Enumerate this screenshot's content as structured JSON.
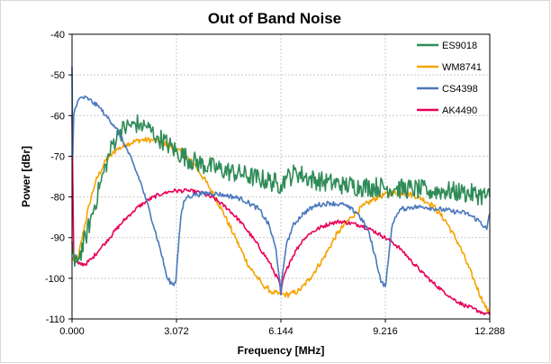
{
  "chart_data": {
    "type": "line",
    "title": "Out of Band Noise",
    "xlabel": "Frequency [MHz]",
    "ylabel": "Power [dBr]",
    "xlim": [
      0,
      12.288
    ],
    "ylim": [
      -110,
      -40
    ],
    "x_ticks": [
      "0.000",
      "3.072",
      "6.144",
      "9.216",
      "12.288"
    ],
    "x_tick_values": [
      0,
      3.072,
      6.144,
      9.216,
      12.288
    ],
    "y_ticks": [
      "-40",
      "-50",
      "-60",
      "-70",
      "-80",
      "-90",
      "-100",
      "-110"
    ],
    "y_tick_values": [
      -40,
      -50,
      -60,
      -70,
      -80,
      -90,
      -100,
      -110
    ],
    "grid": true,
    "legend_position": "top-right",
    "series": [
      {
        "name": "ES9018",
        "color": "#2e8b57",
        "noise": 2.5,
        "x": [
          0.0,
          0.08,
          0.2,
          0.4,
          0.6,
          0.8,
          1.0,
          1.2,
          1.4,
          1.6,
          1.8,
          2.0,
          2.2,
          2.5,
          2.8,
          3.1,
          3.5,
          4.0,
          4.5,
          5.0,
          5.5,
          6.0,
          6.144,
          6.3,
          6.6,
          7.0,
          7.5,
          8.0,
          8.5,
          9.0,
          9.5,
          10.0,
          10.5,
          11.0,
          11.5,
          12.0,
          12.288
        ],
        "y": [
          -91,
          -97,
          -95,
          -90,
          -84,
          -78,
          -72,
          -67,
          -64,
          -63,
          -62,
          -62,
          -63,
          -65,
          -67,
          -69,
          -71,
          -72.5,
          -73.5,
          -74.5,
          -75.5,
          -76.5,
          -77,
          -75.5,
          -74,
          -75.5,
          -76.5,
          -77,
          -77.5,
          -77.5,
          -78,
          -78,
          -78.5,
          -78.5,
          -79,
          -79.5,
          -80
        ]
      },
      {
        "name": "WM8741",
        "color": "#f5a300",
        "noise": 0.7,
        "x": [
          0.0,
          0.1,
          0.2,
          0.35,
          0.5,
          0.7,
          1.0,
          1.3,
          1.6,
          2.0,
          2.4,
          2.8,
          3.2,
          3.6,
          4.0,
          4.4,
          4.8,
          5.2,
          5.6,
          5.9,
          6.144,
          6.4,
          6.7,
          7.0,
          7.4,
          7.8,
          8.2,
          8.6,
          9.0,
          9.4,
          9.8,
          10.2,
          10.6,
          11.0,
          11.4,
          11.8,
          12.1,
          12.288
        ],
        "y": [
          -95,
          -96,
          -94,
          -88,
          -82,
          -76,
          -71,
          -68.5,
          -67,
          -66,
          -66,
          -67,
          -69,
          -72,
          -77,
          -83,
          -90,
          -97,
          -101.5,
          -103.5,
          -104,
          -104,
          -103,
          -100,
          -95,
          -89,
          -85,
          -82,
          -80,
          -79,
          -79,
          -80,
          -82,
          -86,
          -92,
          -100,
          -106,
          -109
        ]
      },
      {
        "name": "CS4398",
        "color": "#4a78bc",
        "noise": 0.6,
        "x": [
          0.0,
          0.02,
          0.05,
          0.1,
          0.2,
          0.3,
          0.5,
          0.8,
          1.0,
          1.3,
          1.6,
          2.0,
          2.3,
          2.6,
          2.8,
          2.95,
          3.05,
          3.1,
          3.2,
          3.3,
          3.4,
          3.6,
          4.0,
          4.5,
          5.0,
          5.5,
          5.8,
          6.0,
          6.1,
          6.144,
          6.19,
          6.3,
          6.5,
          6.8,
          7.2,
          7.6,
          8.0,
          8.4,
          8.7,
          8.9,
          9.1,
          9.216,
          9.3,
          9.4,
          9.5,
          9.7,
          10.0,
          10.4,
          10.8,
          11.2,
          11.6,
          12.0,
          12.2,
          12.288
        ],
        "y": [
          -48,
          -70,
          -60,
          -58,
          -56,
          -55.5,
          -56,
          -58,
          -60,
          -63,
          -68,
          -76,
          -84,
          -93,
          -100,
          -101.5,
          -101,
          -95,
          -85,
          -81,
          -80,
          -79.5,
          -79,
          -79.5,
          -80.5,
          -83,
          -87,
          -93,
          -100,
          -104,
          -99,
          -92,
          -87,
          -84,
          -82,
          -81.5,
          -82,
          -84,
          -88,
          -94,
          -101,
          -102,
          -96,
          -88,
          -85,
          -83,
          -82.5,
          -82.5,
          -83,
          -83.5,
          -84,
          -86,
          -88,
          -84
        ]
      },
      {
        "name": "AK4490",
        "color": "#e8005a",
        "noise": 0.5,
        "x": [
          0.0,
          0.05,
          0.1,
          0.2,
          0.4,
          0.6,
          0.8,
          1.0,
          1.2,
          1.5,
          1.8,
          2.1,
          2.4,
          2.7,
          3.0,
          3.4,
          3.8,
          4.2,
          4.6,
          5.0,
          5.4,
          5.8,
          6.1,
          6.144,
          6.2,
          6.4,
          6.6,
          6.8,
          7.0,
          7.3,
          7.6,
          7.9,
          8.2,
          8.5,
          8.8,
          9.1,
          9.4,
          9.7,
          10.0,
          10.3,
          10.6,
          10.9,
          11.2,
          11.5,
          11.8,
          12.1,
          12.288
        ],
        "y": [
          -60,
          -95,
          -96,
          -96.5,
          -96.5,
          -95,
          -93,
          -91,
          -89,
          -86,
          -83.5,
          -81.5,
          -80,
          -79,
          -78.5,
          -78.5,
          -79,
          -80.5,
          -83,
          -86.5,
          -91,
          -96,
          -101,
          -104,
          -100.5,
          -96,
          -93,
          -90.5,
          -89,
          -87.5,
          -86.5,
          -86,
          -86.5,
          -87,
          -88,
          -89.5,
          -91,
          -93,
          -96,
          -98.5,
          -101,
          -103,
          -105,
          -106.5,
          -107.5,
          -108.5,
          -109
        ]
      }
    ]
  }
}
